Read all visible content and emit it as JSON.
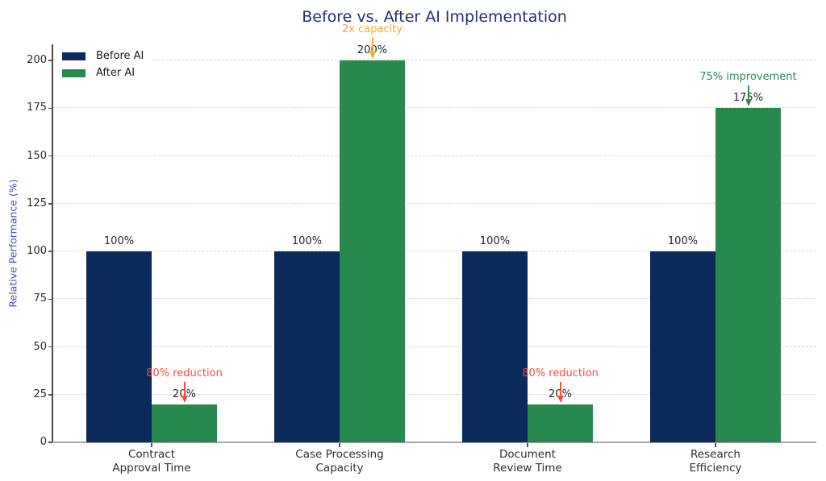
{
  "chart_data": {
    "type": "bar",
    "title": "Before vs. After AI Implementation",
    "title_color": "#212e7c",
    "ylabel": "Relative Performance (%)",
    "ylabel_color": "#3f4cd9",
    "xlabel": "",
    "categories": [
      "Contract\nApproval Time",
      "Case Processing\nCapacity",
      "Document\nReview Time",
      "Research\nEfficiency"
    ],
    "series": [
      {
        "name": "Before AI",
        "color": "#0b2a5b",
        "values": [
          100,
          100,
          100,
          100
        ],
        "bar_labels": [
          "100%",
          "100%",
          "100%",
          "100%"
        ]
      },
      {
        "name": "After AI",
        "color": "#28894f",
        "values": [
          20,
          200,
          20,
          175
        ],
        "bar_labels": [
          "20%",
          "200%",
          "20%",
          "175%"
        ]
      }
    ],
    "yticks": [
      0,
      25,
      50,
      75,
      100,
      125,
      150,
      175,
      200
    ],
    "ytick_labels": [
      "0",
      "25",
      "50",
      "75",
      "100",
      "125",
      "150",
      "175",
      "200"
    ],
    "ylim": [
      0,
      208
    ],
    "grid": {
      "horizontal": true,
      "style": "dashed",
      "color": "#d8d8d8"
    },
    "legend": {
      "position": "upper-left",
      "entries": [
        "Before AI",
        "After AI"
      ]
    },
    "annotations": [
      {
        "text": "80% reduction",
        "color": "#fb4a3e",
        "series": "After AI",
        "category_index": 0,
        "points_to_value": 20,
        "arrow": "down"
      },
      {
        "text": "2x capacity",
        "color": "#ffa726",
        "series": "After AI",
        "category_index": 1,
        "points_to_value": 200,
        "arrow": "down"
      },
      {
        "text": "80% reduction",
        "color": "#fb4a3e",
        "series": "After AI",
        "category_index": 2,
        "points_to_value": 20,
        "arrow": "down"
      },
      {
        "text": "75% improvement",
        "color": "#2e8b57",
        "series": "After AI",
        "category_index": 3,
        "points_to_value": 175,
        "arrow": "down"
      }
    ]
  }
}
